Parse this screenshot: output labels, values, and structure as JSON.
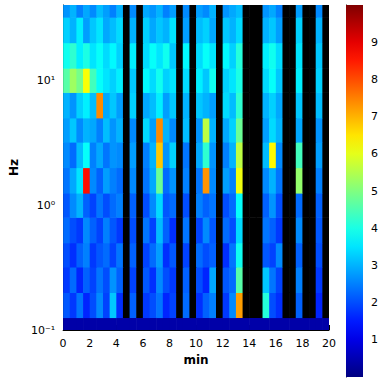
{
  "chart_data": {
    "type": "heatmap",
    "x_label": "min",
    "y_label": "Hz",
    "log": "y",
    "xlim": [
      0,
      20
    ],
    "xticks": [
      0,
      2,
      4,
      6,
      8,
      10,
      12,
      14,
      16,
      18,
      20
    ],
    "ylim": [
      0.1,
      40
    ],
    "yticks": [
      {
        "value": 0.1,
        "label": "10⁻¹"
      },
      {
        "value": 1,
        "label": "10⁰"
      },
      {
        "value": 10,
        "label": "10¹"
      }
    ],
    "x_edges": [
      0,
      0.5,
      1,
      1.5,
      2,
      2.5,
      3,
      3.5,
      4,
      4.5,
      5,
      5.5,
      6,
      6.5,
      7,
      7.5,
      8,
      8.5,
      9,
      9.5,
      10,
      10.5,
      11,
      11.5,
      12,
      12.5,
      13,
      13.5,
      14,
      14.5,
      15,
      15.5,
      16,
      16.5,
      17,
      17.5,
      18,
      18.5,
      19,
      19.5,
      20
    ],
    "y_edges": [
      0.1,
      0.126,
      0.2,
      0.32,
      0.5,
      0.8,
      1.25,
      2,
      3.2,
      5,
      8,
      12.5,
      20,
      32,
      40
    ],
    "values": [
      [
        0.4,
        0.4,
        0.4,
        0.4,
        0.4,
        0.4,
        0.4,
        0.4,
        0.4,
        0.4,
        0.4,
        0.4,
        0.4,
        0.4,
        0.4,
        0.4,
        0.4,
        0.4,
        0.4,
        0.4,
        0.4,
        0.4,
        0.4,
        0.4,
        0.4,
        0.4,
        0.4,
        0.4,
        0.4,
        0.4,
        0.4,
        0.4,
        0.4,
        0.4,
        0.4,
        0.4,
        0.4,
        0.4,
        0.4,
        0.4
      ],
      [
        2.1,
        1.8,
        2.4,
        1.6,
        2.0,
        2.6,
        1.9,
        3.2,
        1.7,
        null,
        2.2,
        null,
        1.8,
        2.0,
        2.4,
        1.6,
        1.9,
        null,
        2.3,
        null,
        1.7,
        2.2,
        2.5,
        null,
        1.8,
        2.6,
        7.2,
        null,
        null,
        null,
        4.1,
        2.0,
        1.7,
        null,
        null,
        2.2,
        null,
        null,
        1.6,
        null
      ],
      [
        1.8,
        2.3,
        1.6,
        2.2,
        1.9,
        2.4,
        2.0,
        2.7,
        2.2,
        null,
        1.9,
        null,
        2.1,
        1.7,
        2.6,
        2.0,
        1.8,
        null,
        2.2,
        null,
        2.0,
        1.6,
        2.9,
        null,
        2.1,
        2.3,
        4.6,
        null,
        null,
        null,
        3.2,
        2.4,
        1.9,
        null,
        null,
        2.5,
        null,
        null,
        1.8,
        null
      ],
      [
        2.0,
        1.7,
        2.2,
        2.5,
        1.8,
        2.1,
        2.3,
        1.9,
        2.4,
        null,
        2.2,
        null,
        1.9,
        2.3,
        2.8,
        1.7,
        2.1,
        null,
        1.9,
        null,
        2.3,
        2.0,
        2.2,
        null,
        1.7,
        2.4,
        3.9,
        null,
        null,
        null,
        2.1,
        1.9,
        2.6,
        null,
        null,
        2.2,
        null,
        null,
        2.0,
        null
      ],
      [
        2.3,
        2.0,
        1.8,
        2.6,
        2.2,
        1.9,
        2.5,
        2.1,
        1.8,
        null,
        2.0,
        null,
        2.4,
        1.9,
        3.1,
        2.2,
        1.7,
        null,
        2.4,
        null,
        1.9,
        2.6,
        2.1,
        null,
        2.3,
        2.0,
        3.4,
        null,
        null,
        null,
        2.4,
        2.2,
        1.8,
        null,
        null,
        2.6,
        null,
        null,
        2.1,
        null
      ],
      [
        2.1,
        2.6,
        3.0,
        2.2,
        1.9,
        2.4,
        2.0,
        2.3,
        2.5,
        null,
        2.2,
        null,
        2.0,
        2.6,
        3.4,
        2.1,
        2.3,
        null,
        2.0,
        null,
        2.5,
        2.2,
        2.4,
        null,
        2.0,
        2.3,
        3.8,
        null,
        null,
        null,
        2.2,
        2.7,
        2.0,
        null,
        null,
        2.3,
        null,
        null,
        2.2,
        null
      ],
      [
        2.4,
        2.9,
        3.5,
        8.6,
        2.6,
        2.2,
        2.8,
        2.5,
        2.3,
        null,
        2.6,
        null,
        2.4,
        2.9,
        4.8,
        2.3,
        2.7,
        null,
        2.5,
        null,
        2.4,
        7.3,
        2.6,
        null,
        2.8,
        2.5,
        6.1,
        null,
        null,
        null,
        2.6,
        3.0,
        2.4,
        null,
        null,
        5.2,
        null,
        null,
        2.5,
        null
      ],
      [
        2.6,
        2.3,
        3.1,
        3.8,
        2.5,
        2.9,
        2.4,
        2.7,
        2.6,
        null,
        2.8,
        null,
        2.5,
        3.0,
        6.8,
        2.7,
        3.3,
        null,
        2.4,
        null,
        2.9,
        4.2,
        2.7,
        null,
        2.5,
        3.0,
        5.6,
        null,
        null,
        null,
        3.1,
        6.3,
        2.6,
        null,
        null,
        4.4,
        null,
        null,
        2.8,
        null
      ],
      [
        2.8,
        3.2,
        2.6,
        3.0,
        2.9,
        2.5,
        3.1,
        2.7,
        3.0,
        null,
        2.6,
        null,
        3.4,
        2.8,
        7.4,
        3.0,
        2.6,
        null,
        3.1,
        null,
        2.7,
        5.6,
        3.0,
        null,
        2.9,
        3.3,
        4.8,
        null,
        null,
        null,
        2.8,
        3.4,
        3.0,
        null,
        null,
        2.9,
        null,
        null,
        2.7,
        null
      ],
      [
        3.0,
        2.7,
        3.3,
        3.6,
        3.1,
        7.4,
        2.9,
        3.2,
        2.8,
        null,
        3.3,
        null,
        2.9,
        3.1,
        3.6,
        2.8,
        3.2,
        null,
        3.0,
        null,
        3.2,
        3.0,
        2.8,
        null,
        3.4,
        3.1,
        4.2,
        null,
        null,
        null,
        3.0,
        3.3,
        2.9,
        null,
        null,
        3.2,
        null,
        null,
        3.1,
        null
      ],
      [
        4.6,
        5.3,
        4.9,
        6.2,
        4.4,
        3.8,
        3.5,
        3.3,
        3.6,
        null,
        3.2,
        null,
        3.7,
        3.4,
        3.9,
        3.3,
        3.5,
        null,
        3.4,
        null,
        3.6,
        3.2,
        3.9,
        null,
        3.3,
        3.5,
        4.0,
        null,
        null,
        null,
        3.4,
        3.8,
        3.2,
        null,
        null,
        3.6,
        null,
        null,
        3.3,
        null
      ],
      [
        3.9,
        4.2,
        3.6,
        4.0,
        3.5,
        3.8,
        3.4,
        3.7,
        3.3,
        null,
        3.6,
        null,
        3.4,
        3.8,
        3.5,
        3.9,
        3.2,
        null,
        3.7,
        null,
        3.4,
        3.8,
        3.5,
        null,
        3.7,
        3.3,
        4.1,
        null,
        null,
        null,
        3.6,
        3.9,
        3.4,
        null,
        null,
        3.5,
        null,
        null,
        3.2,
        null
      ],
      [
        3.3,
        3.0,
        3.6,
        2.8,
        3.2,
        3.5,
        2.9,
        3.1,
        3.4,
        null,
        3.0,
        null,
        3.3,
        2.9,
        3.2,
        3.0,
        3.5,
        null,
        2.8,
        null,
        3.1,
        3.3,
        2.9,
        null,
        3.2,
        3.0,
        3.4,
        null,
        null,
        null,
        3.0,
        3.2,
        2.8,
        null,
        null,
        3.3,
        null,
        null,
        3.0,
        null
      ],
      [
        2.7,
        3.0,
        2.5,
        2.9,
        2.6,
        3.1,
        2.8,
        2.5,
        3.0,
        null,
        2.6,
        null,
        2.9,
        2.7,
        3.0,
        2.5,
        2.8,
        null,
        2.6,
        null,
        2.8,
        2.6,
        3.0,
        null,
        2.7,
        2.9,
        3.1,
        null,
        null,
        null,
        2.7,
        2.9,
        2.5,
        null,
        null,
        2.8,
        null,
        null,
        2.6,
        null
      ]
    ],
    "colorbar": {
      "range": [
        0,
        10
      ],
      "ticks": [
        1,
        2,
        3,
        4,
        5,
        6,
        7,
        8,
        9
      ]
    }
  }
}
